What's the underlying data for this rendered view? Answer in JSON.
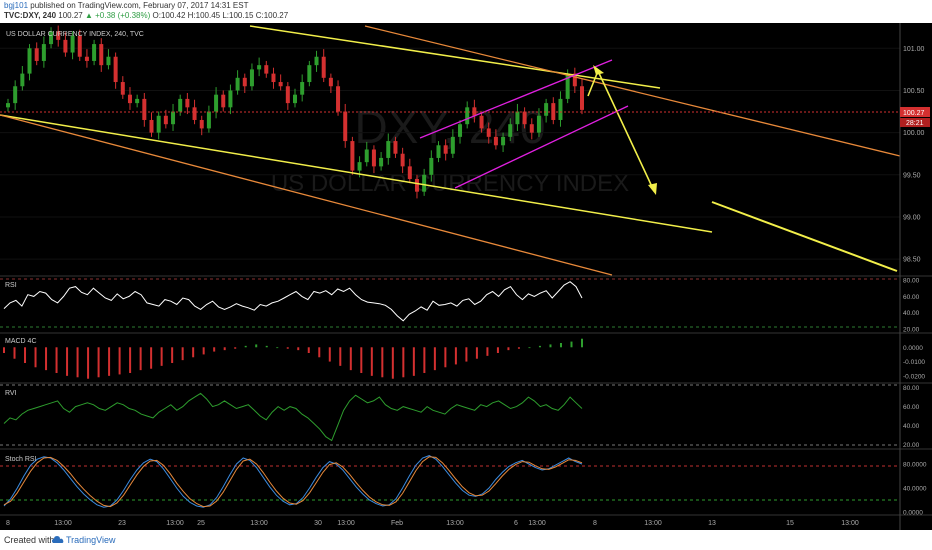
{
  "header": {
    "user": "bgj101",
    "published": "published on TradingView.com, February 07, 2017 14:31 EST",
    "symbol": "TVC:DXY, 240",
    "last": "100.27",
    "change": "▲ +0.38 (+0.38%)",
    "ohlc": "O:100.42 H:100.45 L:100.15 C:100.27"
  },
  "chart": {
    "title": "US DOLLAR CURRENCY INDEX, 240, TVC",
    "watermark_symbol": "DXY, 240",
    "watermark_name": "US DOLLAR CURRENCY INDEX",
    "price_label": "100.27",
    "countdown_label": "28:21"
  },
  "panes": {
    "rsi": "RSI",
    "macd": "MACD 4C",
    "rvi": "RVI",
    "stoch": "Stoch RSI"
  },
  "footer": {
    "created": "Created with",
    "brand": "TradingView"
  },
  "colors": {
    "up": "#2e9e2e",
    "down": "#d43030",
    "yellow": "#f2ef4a",
    "orange": "#e8893a",
    "magenta": "#e020e0",
    "bg": "#000000"
  },
  "chart_data": [
    {
      "type": "candlestick",
      "title": "US DOLLAR CURRENCY INDEX, 240, TVC",
      "ylim": [
        98.3,
        101.3
      ],
      "y_ticks": [
        98.5,
        99.0,
        99.5,
        100.0,
        100.5,
        101.0
      ],
      "x_tick_labels": [
        "8",
        "13:00",
        "23",
        "13:00",
        "25",
        "13:00",
        "30",
        "13:00",
        "Feb",
        "13:00",
        "6",
        "13:00",
        "8",
        "13:00",
        "13",
        "15",
        "13:00"
      ],
      "current_price": 100.27,
      "close_series": [
        100.35,
        100.55,
        100.7,
        101.0,
        100.85,
        101.05,
        101.2,
        101.1,
        100.95,
        101.15,
        100.9,
        100.85,
        101.05,
        100.8,
        100.9,
        100.6,
        100.45,
        100.35,
        100.4,
        100.15,
        100.0,
        100.2,
        100.1,
        100.25,
        100.4,
        100.3,
        100.15,
        100.05,
        100.25,
        100.45,
        100.3,
        100.5,
        100.65,
        100.55,
        100.75,
        100.8,
        100.7,
        100.6,
        100.55,
        100.35,
        100.45,
        100.6,
        100.8,
        100.9,
        100.65,
        100.55,
        100.25,
        99.9,
        99.55,
        99.65,
        99.8,
        99.6,
        99.7,
        99.9,
        99.75,
        99.6,
        99.45,
        99.3,
        99.5,
        99.7,
        99.85,
        99.75,
        99.95,
        100.1,
        100.3,
        100.2,
        100.05,
        99.95,
        99.85,
        99.95,
        100.1,
        100.25,
        100.1,
        100.0,
        100.2,
        100.35,
        100.15,
        100.4,
        100.7,
        100.55,
        100.27
      ],
      "annotations": [
        "descending channel",
        "rising wedge",
        "projected decline arrow"
      ]
    },
    {
      "type": "line",
      "title": "RSI",
      "ylim": [
        15,
        85
      ],
      "y_ticks": [
        20.0,
        40.0,
        60.0,
        80.0
      ],
      "values": [
        45,
        52,
        55,
        48,
        62,
        60,
        66,
        64,
        56,
        52,
        60,
        70,
        72,
        65,
        62,
        70,
        64,
        58,
        55,
        63,
        57,
        60,
        66,
        62,
        52,
        50,
        48,
        56,
        54,
        50,
        58,
        56,
        48,
        44,
        50,
        54,
        47,
        44,
        47,
        51,
        48,
        46,
        43,
        50,
        48,
        52,
        54,
        58,
        62,
        66,
        60,
        56,
        66,
        64,
        67,
        62,
        69,
        66,
        70,
        62,
        56,
        53,
        52,
        51,
        49,
        44,
        36,
        30,
        38,
        42,
        47,
        43,
        54,
        49,
        50,
        52,
        48,
        55,
        57,
        50,
        54,
        62,
        66,
        60,
        68,
        72,
        62,
        56,
        63,
        60,
        64,
        67,
        58,
        66,
        74,
        78,
        72,
        58
      ]
    },
    {
      "type": "bar",
      "title": "MACD 4C",
      "ylim": [
        -0.025,
        0.01
      ],
      "y_ticks": [
        0.0,
        -0.01,
        -0.02
      ],
      "values": [
        -0.004,
        -0.008,
        -0.011,
        -0.014,
        -0.016,
        -0.018,
        -0.02,
        -0.021,
        -0.022,
        -0.021,
        -0.02,
        -0.019,
        -0.018,
        -0.016,
        -0.015,
        -0.013,
        -0.011,
        -0.009,
        -0.007,
        -0.005,
        -0.003,
        -0.002,
        -0.001,
        0.001,
        0.002,
        0.001,
        0.0,
        -0.001,
        -0.002,
        -0.004,
        -0.007,
        -0.01,
        -0.013,
        -0.016,
        -0.018,
        -0.02,
        -0.021,
        -0.022,
        -0.021,
        -0.02,
        -0.018,
        -0.016,
        -0.014,
        -0.012,
        -0.01,
        -0.008,
        -0.006,
        -0.004,
        -0.002,
        -0.001,
        0.0,
        0.001,
        0.002,
        0.003,
        0.004,
        0.006
      ]
    },
    {
      "type": "line",
      "title": "RVI",
      "ylim": [
        15,
        85
      ],
      "y_ticks": [
        20.0,
        40.0,
        60.0,
        80.0
      ],
      "values": [
        42,
        48,
        46,
        52,
        56,
        58,
        60,
        62,
        64,
        66,
        58,
        54,
        60,
        62,
        64,
        62,
        58,
        56,
        60,
        64,
        62,
        58,
        56,
        52,
        50,
        48,
        54,
        58,
        62,
        56,
        60,
        66,
        70,
        74,
        68,
        60,
        62,
        66,
        62,
        58,
        60,
        62,
        56,
        50,
        46,
        54,
        60,
        56,
        60,
        58,
        52,
        48,
        42,
        36,
        28,
        24,
        40,
        56,
        66,
        72,
        68,
        64,
        66,
        70,
        62,
        58,
        56,
        60,
        58,
        56,
        54,
        60,
        56,
        54,
        52,
        58,
        62,
        60,
        58,
        56,
        62,
        60,
        64,
        66,
        62,
        58,
        60,
        64,
        70,
        66,
        60,
        62,
        58,
        56,
        62,
        70,
        64,
        58
      ]
    },
    {
      "type": "line",
      "title": "Stoch RSI",
      "ylim": [
        -5,
        105
      ],
      "y_ticks": [
        0.0,
        40.0,
        80.0
      ],
      "series": [
        {
          "values": [
            10,
            22,
            40,
            60,
            78,
            88,
            92,
            90,
            82,
            70,
            56,
            42,
            30,
            20,
            12,
            8,
            10,
            20,
            36,
            54,
            70,
            82,
            88,
            84,
            72,
            56,
            40,
            26,
            16,
            10,
            8,
            12,
            24,
            42,
            62,
            80,
            90,
            86,
            74,
            58,
            42,
            28,
            18,
            12,
            14,
            24,
            40,
            58,
            74,
            84,
            80,
            70,
            56,
            42,
            30,
            20,
            14,
            10,
            12,
            22,
            40,
            60,
            78,
            90,
            94,
            88,
            76,
            62,
            48,
            36,
            28,
            26,
            30,
            40,
            54,
            66,
            76,
            82,
            86,
            80,
            74,
            70,
            72,
            78,
            84,
            90,
            84,
            80
          ]
        },
        {
          "values": [
            12,
            18,
            32,
            50,
            68,
            82,
            90,
            91,
            86,
            76,
            64,
            50,
            38,
            27,
            18,
            11,
            9,
            15,
            28,
            45,
            62,
            76,
            85,
            86,
            78,
            64,
            48,
            34,
            22,
            14,
            9,
            10,
            18,
            33,
            52,
            71,
            85,
            88,
            80,
            66,
            50,
            35,
            23,
            15,
            13,
            19,
            32,
            49,
            66,
            79,
            82,
            75,
            63,
            49,
            36,
            25,
            17,
            12,
            11,
            17,
            31,
            50,
            69,
            84,
            92,
            91,
            82,
            69,
            55,
            42,
            32,
            27,
            28,
            35,
            47,
            60,
            71,
            79,
            84,
            83,
            77,
            72,
            71,
            75,
            81,
            87,
            86,
            82
          ]
        }
      ]
    }
  ]
}
